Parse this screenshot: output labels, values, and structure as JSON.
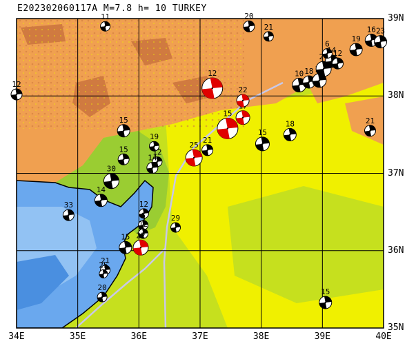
{
  "header": {
    "title": "E202302060117A M=7.8 h= 10 TURKEY"
  },
  "axes": {
    "lon_labels": [
      {
        "value": 34,
        "text": "34E"
      },
      {
        "value": 35,
        "text": "35E"
      },
      {
        "value": 36,
        "text": "36E"
      },
      {
        "value": 37,
        "text": "37E"
      },
      {
        "value": 38,
        "text": "38E"
      },
      {
        "value": 39,
        "text": "39E"
      },
      {
        "value": 40,
        "text": "40E"
      }
    ],
    "lat_labels": [
      {
        "value": 39,
        "text": "39N"
      },
      {
        "value": 38,
        "text": "38N"
      },
      {
        "value": 37,
        "text": "37N"
      },
      {
        "value": 36,
        "text": "36N"
      },
      {
        "value": 35,
        "text": "35N"
      }
    ],
    "lon_range": [
      34,
      40
    ],
    "lat_range": [
      35,
      39
    ]
  },
  "colors": {
    "sea_deep": "#4a8fe0",
    "sea_mid": "#6aa8ee",
    "sea_shallow": "#9cc8f4",
    "lowland": "#9acd32",
    "plain": "#c6e01e",
    "hills": "#f0f000",
    "upland": "#f0a050",
    "high": "#d07a40",
    "grid": "#000000",
    "fault": "#c8c8e8",
    "main_event": "#e00000",
    "other_event": "#000000"
  },
  "events": [
    {
      "lon": 34.0,
      "lat": 38.02,
      "depth": "12",
      "size": 8,
      "main": false
    },
    {
      "lon": 35.45,
      "lat": 38.9,
      "depth": "11",
      "size": 7,
      "main": false
    },
    {
      "lon": 36.2,
      "lat": 37.8,
      "depth": "",
      "size": 0,
      "main": false
    },
    {
      "lon": 35.75,
      "lat": 37.55,
      "depth": "15",
      "size": 9,
      "main": false
    },
    {
      "lon": 35.75,
      "lat": 37.18,
      "depth": "15",
      "size": 8,
      "main": false
    },
    {
      "lon": 36.25,
      "lat": 37.35,
      "depth": "19",
      "size": 7,
      "main": false
    },
    {
      "lon": 36.3,
      "lat": 37.15,
      "depth": "12",
      "size": 7,
      "main": false
    },
    {
      "lon": 36.22,
      "lat": 37.07,
      "depth": "14",
      "size": 8,
      "main": false
    },
    {
      "lon": 35.55,
      "lat": 36.9,
      "depth": "30",
      "size": 11,
      "main": false
    },
    {
      "lon": 35.38,
      "lat": 36.65,
      "depth": "14",
      "size": 9,
      "main": false
    },
    {
      "lon": 34.85,
      "lat": 36.46,
      "depth": "33",
      "size": 8,
      "main": false
    },
    {
      "lon": 36.08,
      "lat": 36.48,
      "depth": "12",
      "size": 7,
      "main": false
    },
    {
      "lon": 36.07,
      "lat": 36.33,
      "depth": "6",
      "size": 7,
      "main": false
    },
    {
      "lon": 36.07,
      "lat": 36.22,
      "depth": "12",
      "size": 7,
      "main": false
    },
    {
      "lon": 35.78,
      "lat": 36.04,
      "depth": "15",
      "size": 9,
      "main": false
    },
    {
      "lon": 36.03,
      "lat": 36.04,
      "depth": "22",
      "size": 11,
      "main": true
    },
    {
      "lon": 36.6,
      "lat": 36.3,
      "depth": "29",
      "size": 7,
      "main": false
    },
    {
      "lon": 35.45,
      "lat": 35.75,
      "depth": "21",
      "size": 7,
      "main": false
    },
    {
      "lon": 35.42,
      "lat": 35.7,
      "depth": "25",
      "size": 6,
      "main": false
    },
    {
      "lon": 35.4,
      "lat": 35.4,
      "depth": "20",
      "size": 7,
      "main": false
    },
    {
      "lon": 36.9,
      "lat": 37.2,
      "depth": "25",
      "size": 12,
      "main": true
    },
    {
      "lon": 37.12,
      "lat": 37.3,
      "depth": "21",
      "size": 8,
      "main": false
    },
    {
      "lon": 37.2,
      "lat": 38.1,
      "depth": "12",
      "size": 15,
      "main": true
    },
    {
      "lon": 37.45,
      "lat": 37.58,
      "depth": "15",
      "size": 15,
      "main": true
    },
    {
      "lon": 37.7,
      "lat": 37.72,
      "depth": "17",
      "size": 10,
      "main": true
    },
    {
      "lon": 37.7,
      "lat": 37.94,
      "depth": "22",
      "size": 9,
      "main": true
    },
    {
      "lon": 38.02,
      "lat": 37.38,
      "depth": "15",
      "size": 10,
      "main": false
    },
    {
      "lon": 38.47,
      "lat": 37.5,
      "depth": "18",
      "size": 9,
      "main": false
    },
    {
      "lon": 37.8,
      "lat": 38.9,
      "depth": "20",
      "size": 8,
      "main": false
    },
    {
      "lon": 38.12,
      "lat": 38.77,
      "depth": "21",
      "size": 7,
      "main": false
    },
    {
      "lon": 38.62,
      "lat": 38.14,
      "depth": "10",
      "size": 10,
      "main": false
    },
    {
      "lon": 38.78,
      "lat": 38.18,
      "depth": "18",
      "size": 9,
      "main": false
    },
    {
      "lon": 38.95,
      "lat": 38.2,
      "depth": "16",
      "size": 10,
      "main": false
    },
    {
      "lon": 39.02,
      "lat": 38.35,
      "depth": "21",
      "size": 11,
      "main": false
    },
    {
      "lon": 39.15,
      "lat": 38.45,
      "depth": "14",
      "size": 9,
      "main": false
    },
    {
      "lon": 39.25,
      "lat": 38.42,
      "depth": "12",
      "size": 8,
      "main": false
    },
    {
      "lon": 39.08,
      "lat": 38.55,
      "depth": "6",
      "size": 7,
      "main": false
    },
    {
      "lon": 39.55,
      "lat": 38.6,
      "depth": "19",
      "size": 9,
      "main": false
    },
    {
      "lon": 39.8,
      "lat": 38.72,
      "depth": "16",
      "size": 9,
      "main": false
    },
    {
      "lon": 39.95,
      "lat": 38.7,
      "depth": "23",
      "size": 9,
      "main": false
    },
    {
      "lon": 39.78,
      "lat": 37.55,
      "depth": "21",
      "size": 8,
      "main": false
    },
    {
      "lon": 39.05,
      "lat": 35.33,
      "depth": "15",
      "size": 9,
      "main": false
    }
  ]
}
